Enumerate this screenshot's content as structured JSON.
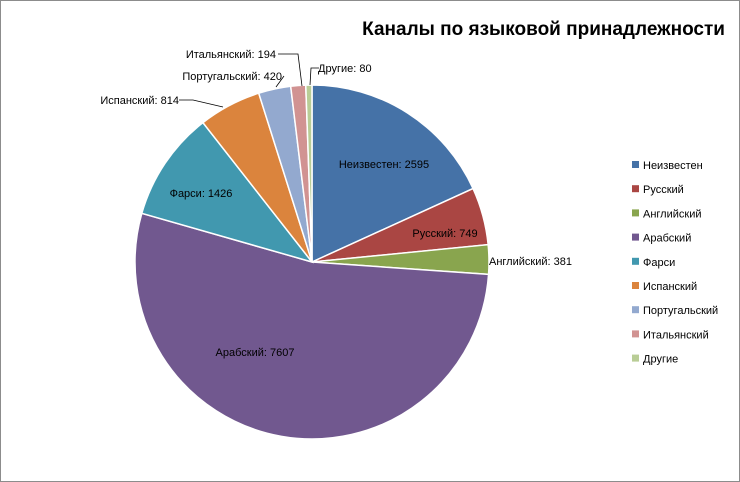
{
  "chart_data": {
    "type": "pie",
    "title": "Каналы по языковой принадлежности",
    "legend_position": "right",
    "slices": [
      {
        "name": "Неизвестен",
        "value": 2595,
        "color": "#4572A7"
      },
      {
        "name": "Русский",
        "value": 749,
        "color": "#AA4643"
      },
      {
        "name": "Английский",
        "value": 381,
        "color": "#89A54E"
      },
      {
        "name": "Арабский",
        "value": 7607,
        "color": "#71588F"
      },
      {
        "name": "Фарси",
        "value": 1426,
        "color": "#4198AF"
      },
      {
        "name": "Испанский",
        "value": 814,
        "color": "#DB843D"
      },
      {
        "name": "Португальский",
        "value": 420,
        "color": "#93A9CF"
      },
      {
        "name": "Итальянский",
        "value": 194,
        "color": "#D19392"
      },
      {
        "name": "Другие",
        "value": 80,
        "color": "#B9CD96"
      }
    ]
  }
}
